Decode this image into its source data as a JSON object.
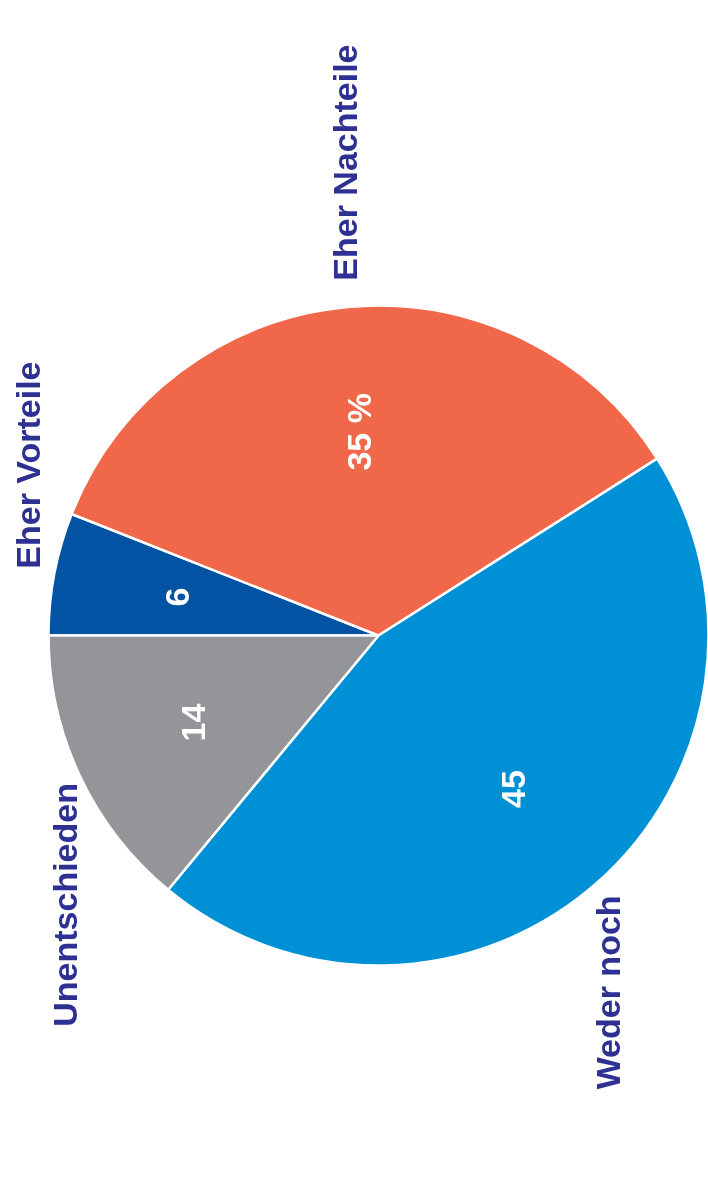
{
  "chart_data": {
    "type": "pie",
    "categories": [
      "Eher Vorteile",
      "Eher Nachteile",
      "Weder noch",
      "Unentschieden"
    ],
    "values": [
      6,
      35,
      45,
      14
    ],
    "colors": [
      "#0353a4",
      "#f0674a",
      "#0090d6",
      "#939598"
    ],
    "value_labels": [
      "6",
      "35 %",
      "45",
      "14"
    ]
  }
}
